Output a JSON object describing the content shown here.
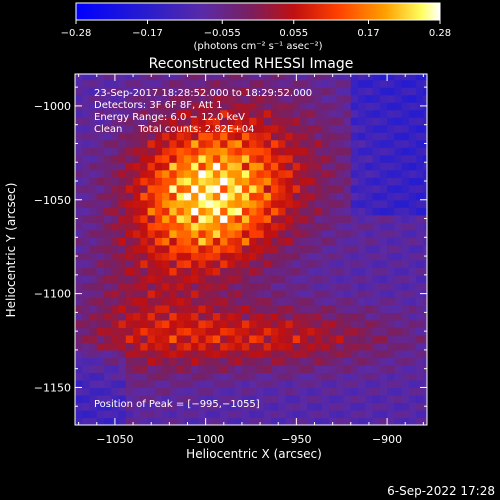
{
  "chart_data": {
    "type": "heatmap",
    "title": "Reconstructed RHESSI Image",
    "xlabel": "Heliocentric X (arcsec)",
    "ylabel": "Heliocentric Y (arcsec)",
    "xlim": [
      -1072,
      -878
    ],
    "ylim": [
      -1170,
      -983
    ],
    "xticks": [
      -1050,
      -1000,
      -950,
      -900
    ],
    "yticks": [
      -1000,
      -1050,
      -1100,
      -1150
    ],
    "xtick_labels": [
      "−1050",
      "−1000",
      "−950",
      "−900"
    ],
    "ytick_labels": [
      "−1000",
      "−1050",
      "−1100",
      "−1150"
    ],
    "colorbar": {
      "min": -0.28,
      "max": 0.28,
      "ticks": [
        -0.28,
        -0.17,
        -0.055,
        0.055,
        0.17,
        0.28
      ],
      "tick_labels": [
        "−0.28",
        "−0.17",
        "−0.055",
        "0.055",
        "0.17",
        "0.28"
      ],
      "units_label": "(photons cm⁻² s⁻¹ asec⁻²)"
    },
    "info_lines": [
      "23-Sep-2017 18:28:52.000 to 18:29:52.000",
      "Detectors: 3F 6F 8F, Att 1",
      "Energy Range: 6.0 − 12.0 keV",
      "Clean     Total counts: 2.82E+04"
    ],
    "peak_label": "Position of Peak = [−995,−1055]",
    "peak_position": [
      -995,
      -1055
    ],
    "grid": false
  },
  "footer": {
    "date": "6-Sep-2022 17:28"
  },
  "colors": {
    "background": "#000000",
    "text": "#ffffff",
    "colormap": [
      "#0000ff",
      "#5a2aa6",
      "#7a1f5f",
      "#c01010",
      "#ff4000",
      "#ffa000",
      "#ffff60",
      "#ffffff"
    ]
  }
}
